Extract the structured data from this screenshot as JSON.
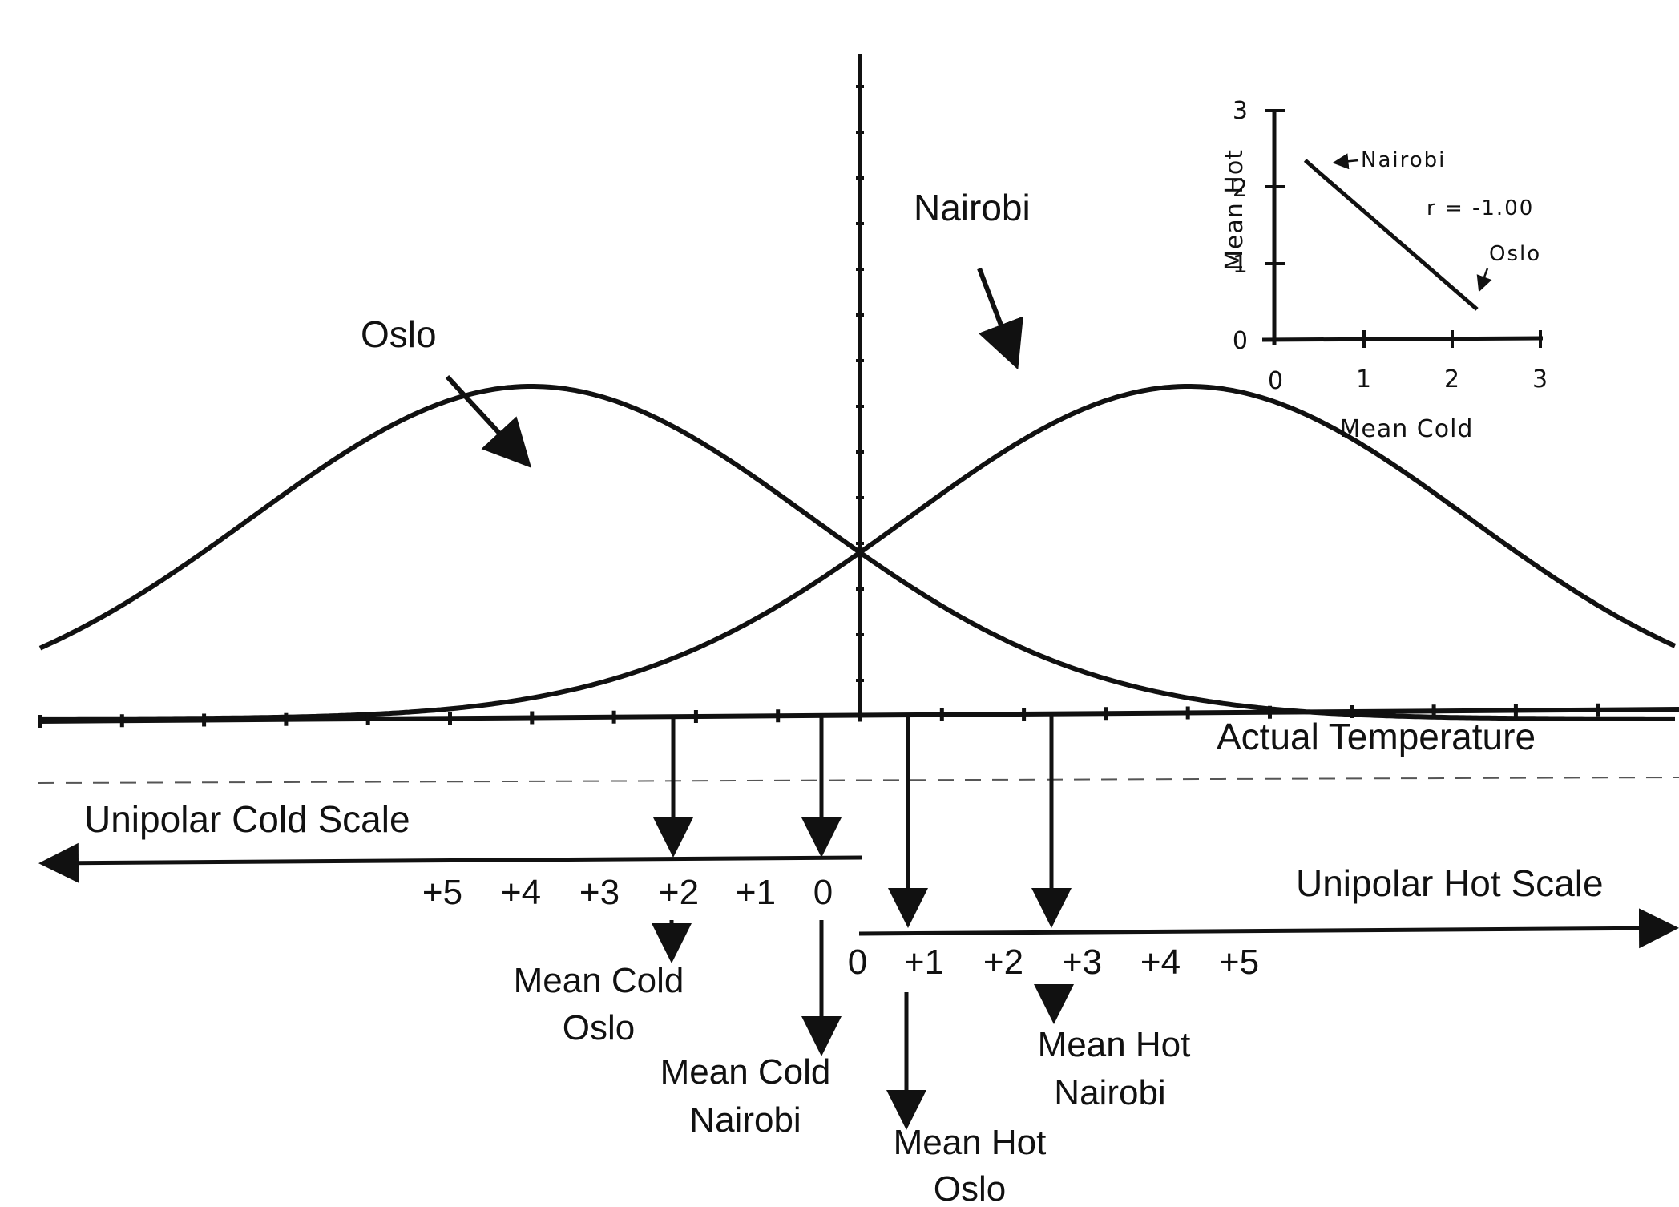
{
  "labels": {
    "oslo": "Oslo",
    "nairobi": "Nairobi",
    "actual_temperature": "Actual Temperature",
    "cold_scale": "Unipolar Cold Scale",
    "hot_scale": "Unipolar Hot Scale",
    "mean_cold_oslo_1": "Mean Cold",
    "mean_cold_oslo_2": "Oslo",
    "mean_cold_nairobi_1": "Mean Cold",
    "mean_cold_nairobi_2": "Nairobi",
    "mean_hot_oslo_1": "Mean Hot",
    "mean_hot_oslo_2": "Oslo",
    "mean_hot_nairobi_1": "Mean Hot",
    "mean_hot_nairobi_2": "Nairobi"
  },
  "cold_ticks": [
    "+5",
    "+4",
    "+3",
    "+2",
    "+1",
    "0"
  ],
  "hot_ticks": [
    "0",
    "+1",
    "+2",
    "+3",
    "+4",
    "+5"
  ],
  "inset": {
    "y_label": "Mean Hot",
    "x_label": "Mean Cold",
    "y_ticks": [
      "0",
      "1",
      "2",
      "3"
    ],
    "x_ticks": [
      "0",
      "1",
      "2",
      "3"
    ],
    "annotation_nairobi": "Nairobi",
    "annotation_oslo": "Oslo",
    "correlation": "r = -1.00"
  },
  "chart_data": {
    "type": "line",
    "xlabel": "Mean Cold",
    "ylabel": "Mean Hot",
    "xlim": [
      0,
      3
    ],
    "ylim": [
      0,
      3
    ],
    "series": [
      {
        "x": [
          0.35,
          2.3
        ],
        "y": [
          2.35,
          0.4
        ]
      }
    ],
    "annotations": [
      "Nairobi",
      "Oslo",
      "r = -1.00"
    ]
  },
  "curves": [
    {
      "name": "Oslo",
      "mean": -2,
      "sd": 1.7
    },
    {
      "name": "Nairobi",
      "mean": 2,
      "sd": 1.7
    }
  ]
}
